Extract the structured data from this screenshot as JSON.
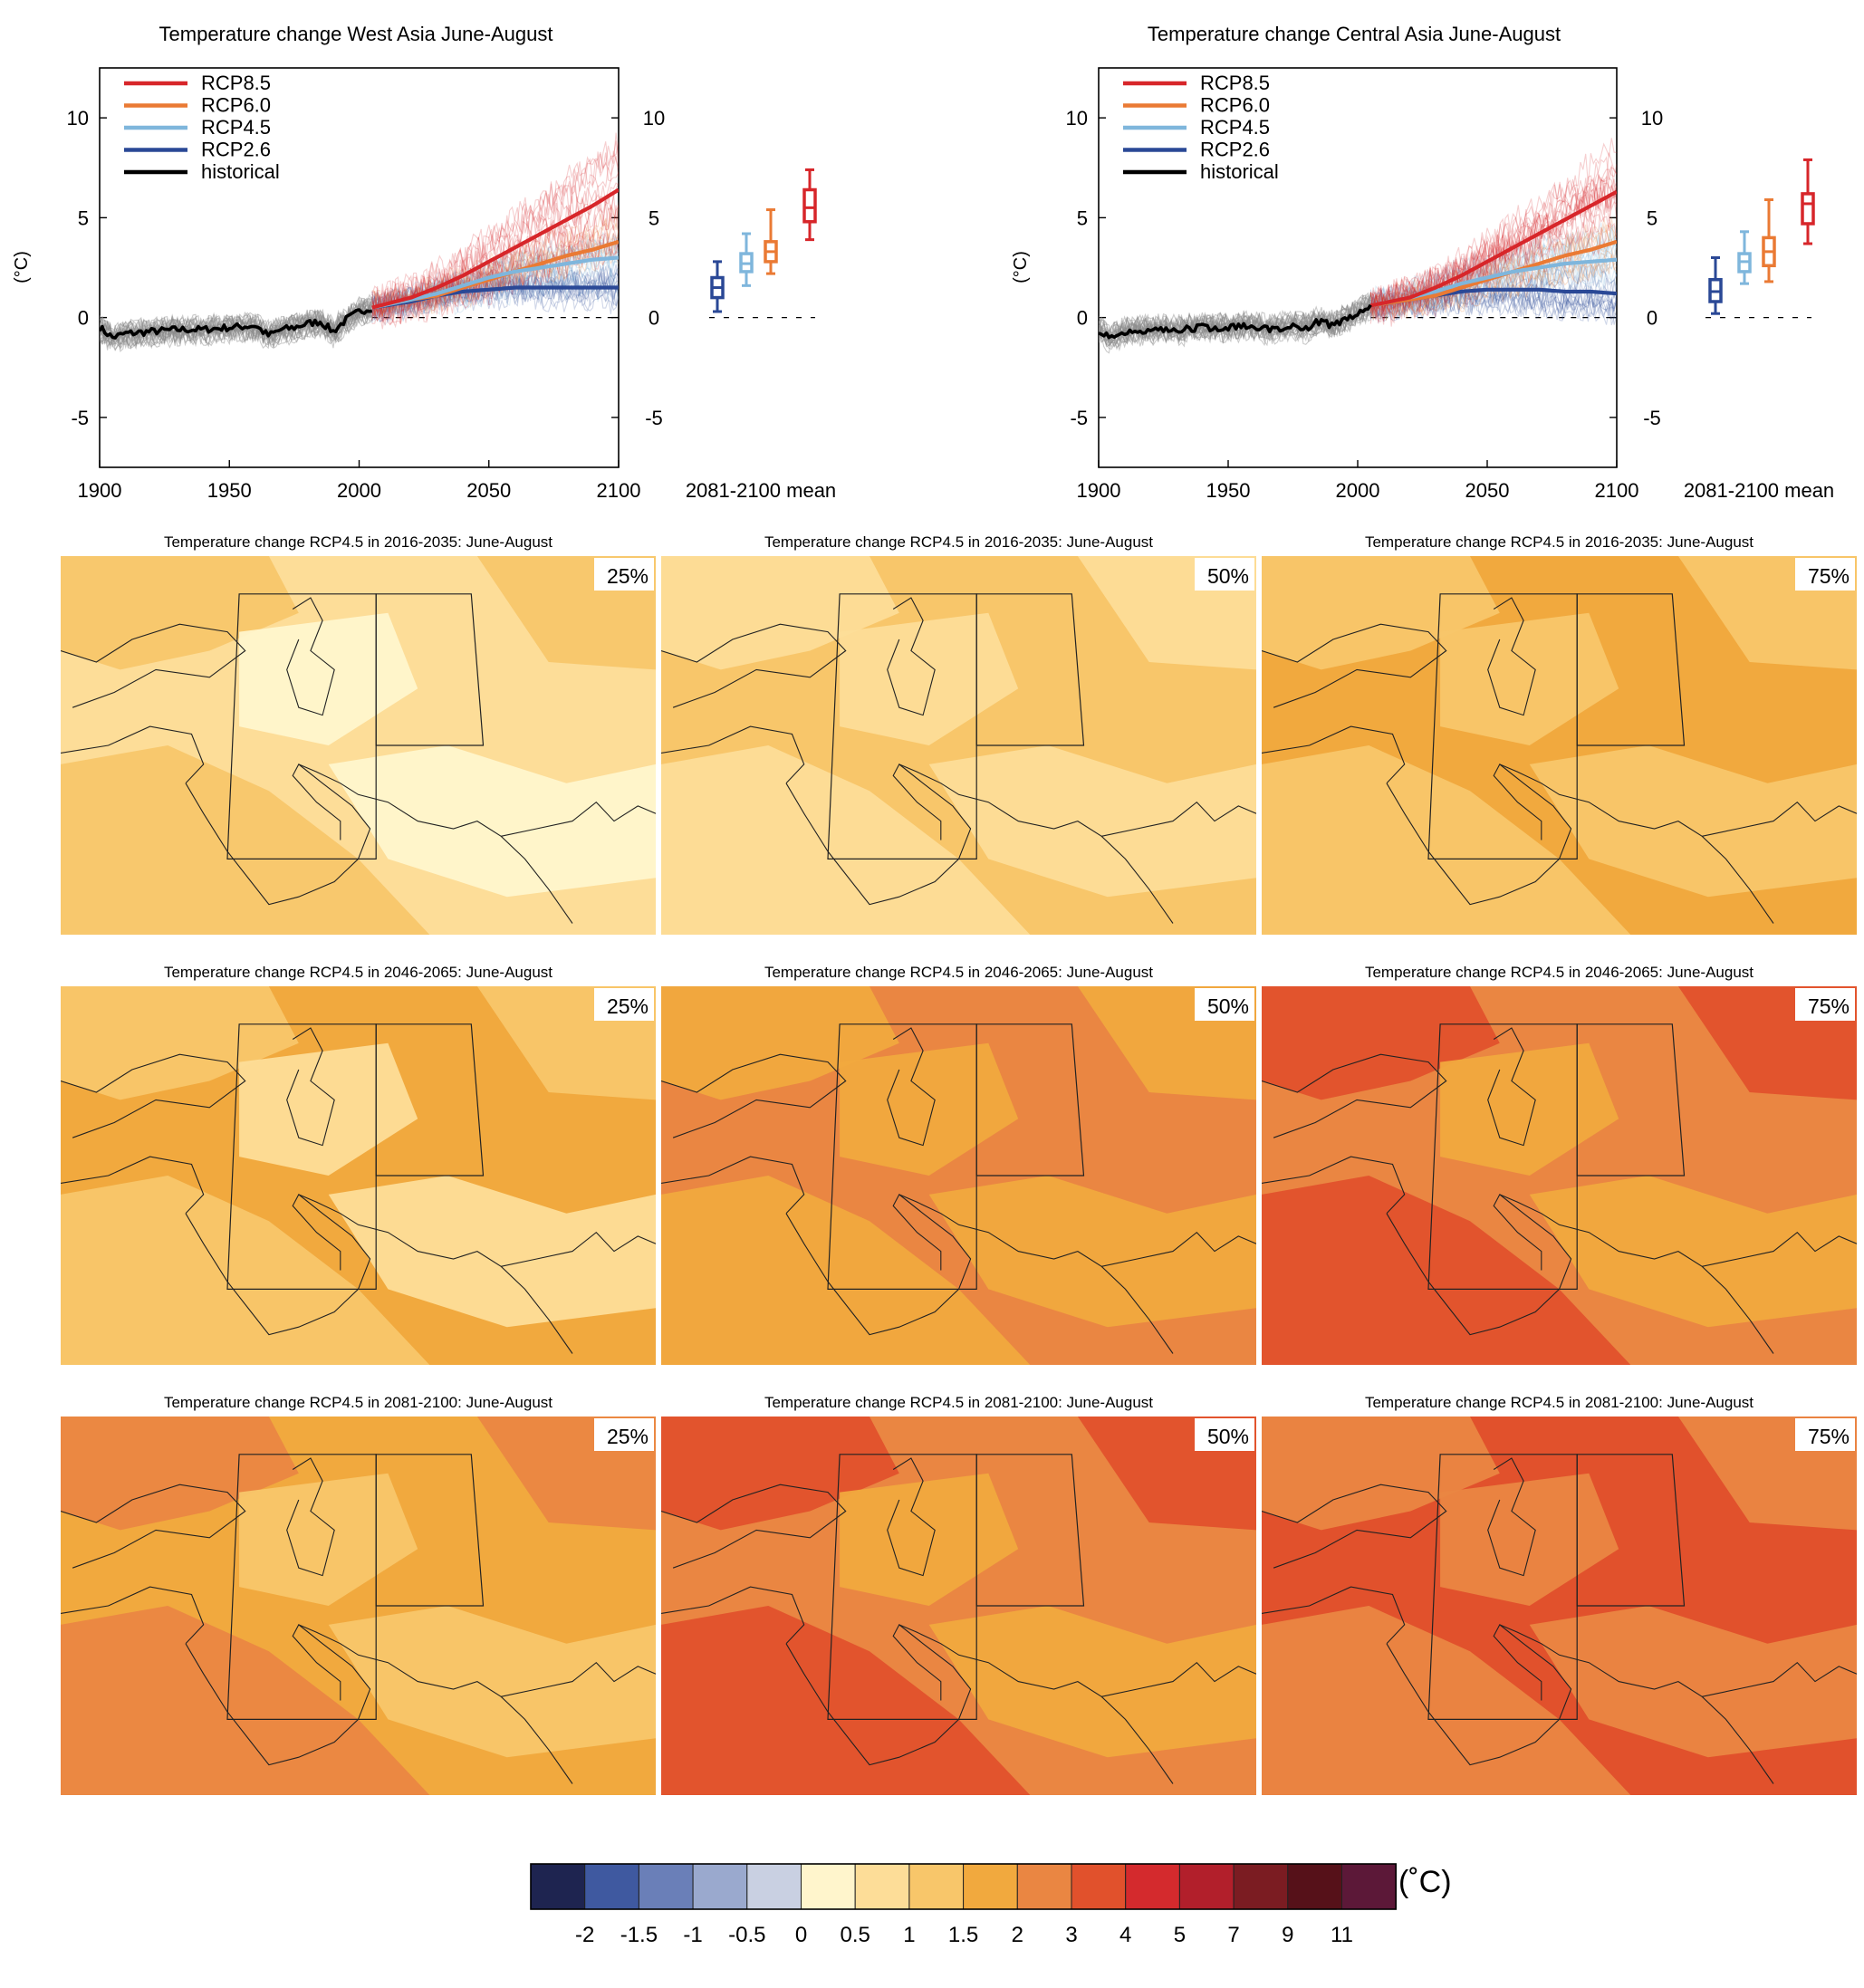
{
  "colors": {
    "rcp85": "#d7262a",
    "rcp60": "#ea7a34",
    "rcp45": "#7fb6dc",
    "rcp26": "#2a4896",
    "historical": "#000000",
    "hist_spread": "#8a8a8a"
  },
  "chart_data": [
    {
      "type": "line",
      "title": "Temperature change West Asia June-August",
      "ylabel": "(°C)",
      "xlim": [
        1900,
        2100
      ],
      "ylim": [
        -7.5,
        12.5
      ],
      "x_ticks": [
        "1900",
        "1950",
        "2000",
        "2050",
        "2100"
      ],
      "y_ticks": [
        "10",
        "5",
        "0",
        "-5"
      ],
      "legend_position": "top-left",
      "legend": [
        "RCP8.5",
        "RCP6.0",
        "RCP4.5",
        "RCP2.6",
        "historical"
      ],
      "series": [
        {
          "name": "historical",
          "x": [
            1900,
            1905,
            1910,
            1920,
            1930,
            1940,
            1950,
            1960,
            1965,
            1970,
            1975,
            1980,
            1985,
            1990,
            1995,
            2000,
            2005
          ],
          "y": [
            -0.5,
            -1.0,
            -0.8,
            -0.7,
            -0.6,
            -0.6,
            -0.5,
            -0.4,
            -0.9,
            -0.6,
            -0.5,
            -0.3,
            -0.2,
            -0.7,
            -0.1,
            0.3,
            0.5
          ]
        },
        {
          "name": "RCP2.6",
          "x": [
            2005,
            2020,
            2030,
            2040,
            2050,
            2060,
            2070,
            2080,
            2090,
            2100
          ],
          "y": [
            0.5,
            0.8,
            1.1,
            1.3,
            1.4,
            1.5,
            1.5,
            1.5,
            1.5,
            1.5
          ]
        },
        {
          "name": "RCP4.5",
          "x": [
            2005,
            2020,
            2030,
            2040,
            2050,
            2060,
            2070,
            2080,
            2090,
            2100
          ],
          "y": [
            0.5,
            0.9,
            1.2,
            1.6,
            2.0,
            2.3,
            2.5,
            2.7,
            2.9,
            3.0
          ]
        },
        {
          "name": "RCP6.0",
          "x": [
            2005,
            2020,
            2030,
            2040,
            2050,
            2060,
            2070,
            2080,
            2090,
            2100
          ],
          "y": [
            0.5,
            0.9,
            1.1,
            1.5,
            1.9,
            2.3,
            2.7,
            3.1,
            3.4,
            3.8
          ]
        },
        {
          "name": "RCP8.5",
          "x": [
            2005,
            2020,
            2030,
            2040,
            2050,
            2060,
            2070,
            2080,
            2090,
            2100
          ],
          "y": [
            0.5,
            1.0,
            1.5,
            2.1,
            2.8,
            3.5,
            4.2,
            4.9,
            5.6,
            6.4
          ]
        }
      ],
      "boxes_label": "2081-2100 mean",
      "boxes": [
        {
          "name": "RCP2.6",
          "min": 0.3,
          "q1": 1.0,
          "median": 1.5,
          "q3": 2.0,
          "max": 2.8
        },
        {
          "name": "RCP4.5",
          "min": 1.6,
          "q1": 2.3,
          "median": 2.7,
          "q3": 3.2,
          "max": 4.2
        },
        {
          "name": "RCP6.0",
          "min": 2.2,
          "q1": 2.8,
          "median": 3.3,
          "q3": 3.8,
          "max": 5.4
        },
        {
          "name": "RCP8.5",
          "min": 3.9,
          "q1": 4.8,
          "median": 5.5,
          "q3": 6.4,
          "max": 7.4
        }
      ]
    },
    {
      "type": "line",
      "title": "Temperature change Central Asia June-August",
      "ylabel": "(°C)",
      "xlim": [
        1900,
        2100
      ],
      "ylim": [
        -7.5,
        12.5
      ],
      "x_ticks": [
        "1900",
        "1950",
        "2000",
        "2050",
        "2100"
      ],
      "y_ticks": [
        "10",
        "5",
        "0",
        "-5"
      ],
      "legend_position": "top-left",
      "legend": [
        "RCP8.5",
        "RCP6.0",
        "RCP4.5",
        "RCP2.6",
        "historical"
      ],
      "series": [
        {
          "name": "historical",
          "x": [
            1900,
            1905,
            1910,
            1920,
            1930,
            1940,
            1950,
            1960,
            1965,
            1970,
            1975,
            1980,
            1985,
            1990,
            1995,
            2000,
            2005
          ],
          "y": [
            -0.6,
            -1.0,
            -0.7,
            -0.6,
            -0.6,
            -0.5,
            -0.5,
            -0.4,
            -0.6,
            -0.5,
            -0.4,
            -0.5,
            -0.2,
            -0.4,
            -0.1,
            0.2,
            0.6
          ]
        },
        {
          "name": "RCP2.6",
          "x": [
            2005,
            2020,
            2030,
            2040,
            2050,
            2060,
            2070,
            2080,
            2090,
            2100
          ],
          "y": [
            0.6,
            0.9,
            1.1,
            1.3,
            1.4,
            1.4,
            1.4,
            1.3,
            1.3,
            1.2
          ]
        },
        {
          "name": "RCP4.5",
          "x": [
            2005,
            2020,
            2030,
            2040,
            2050,
            2060,
            2070,
            2080,
            2090,
            2100
          ],
          "y": [
            0.6,
            1.0,
            1.3,
            1.7,
            2.0,
            2.3,
            2.5,
            2.7,
            2.8,
            2.9
          ]
        },
        {
          "name": "RCP6.0",
          "x": [
            2005,
            2020,
            2030,
            2040,
            2050,
            2060,
            2070,
            2080,
            2090,
            2100
          ],
          "y": [
            0.6,
            0.9,
            1.1,
            1.5,
            1.9,
            2.3,
            2.7,
            3.1,
            3.4,
            3.8
          ]
        },
        {
          "name": "RCP8.5",
          "x": [
            2005,
            2020,
            2030,
            2040,
            2050,
            2060,
            2070,
            2080,
            2090,
            2100
          ],
          "y": [
            0.6,
            1.0,
            1.5,
            2.1,
            2.8,
            3.5,
            4.2,
            4.9,
            5.6,
            6.3
          ]
        }
      ],
      "boxes_label": "2081-2100 mean",
      "boxes": [
        {
          "name": "RCP2.6",
          "min": 0.2,
          "q1": 0.8,
          "median": 1.3,
          "q3": 1.9,
          "max": 3.0
        },
        {
          "name": "RCP4.5",
          "min": 1.7,
          "q1": 2.3,
          "median": 2.8,
          "q3": 3.2,
          "max": 4.3
        },
        {
          "name": "RCP6.0",
          "min": 1.8,
          "q1": 2.6,
          "median": 3.3,
          "q3": 4.0,
          "max": 5.9
        },
        {
          "name": "RCP8.5",
          "min": 3.7,
          "q1": 4.7,
          "median": 5.7,
          "q3": 6.2,
          "max": 7.9
        }
      ]
    },
    {
      "type": "heatmap",
      "title_prefix": "Temperature change RCP4.5 in",
      "title_suffix": ": June-August",
      "periods": [
        "2016-2035",
        "2046-2065",
        "2081-2100"
      ],
      "percentiles": [
        "25%",
        "50%",
        "75%"
      ],
      "panels": [
        [
          {
            "base_level": 6,
            "secondary_level": 7,
            "low_level": 5
          },
          {
            "base_level": 7,
            "secondary_level": 6,
            "low_level": 6
          },
          {
            "base_level": 8,
            "secondary_level": 7,
            "low_level": 7
          }
        ],
        [
          {
            "base_level": 8,
            "secondary_level": 7,
            "low_level": 6
          },
          {
            "base_level": 9,
            "secondary_level": 8,
            "low_level": 8
          },
          {
            "base_level": 9,
            "secondary_level": 10,
            "low_level": 8
          }
        ],
        [
          {
            "base_level": 8,
            "secondary_level": 9,
            "low_level": 7
          },
          {
            "base_level": 9,
            "secondary_level": 10,
            "low_level": 8
          },
          {
            "base_level": 10,
            "secondary_level": 9,
            "low_level": 9
          }
        ]
      ],
      "colorbar": {
        "unit": "(˚C)",
        "labels": [
          "-2",
          "-1.5",
          "-1",
          "-0.5",
          "0",
          "0.5",
          "1",
          "1.5",
          "2",
          "3",
          "4",
          "5",
          "7",
          "9",
          "11"
        ],
        "colors": [
          "#1e2450",
          "#3f59a0",
          "#6a7fb8",
          "#9aa9ce",
          "#c9d0e2",
          "#fff5cc",
          "#fddd98",
          "#f8c66a",
          "#f1a93e",
          "#ea8642",
          "#e1512c",
          "#d42a2d",
          "#b21f2b",
          "#7b1c22",
          "#561119",
          "#5c1838"
        ]
      }
    }
  ]
}
